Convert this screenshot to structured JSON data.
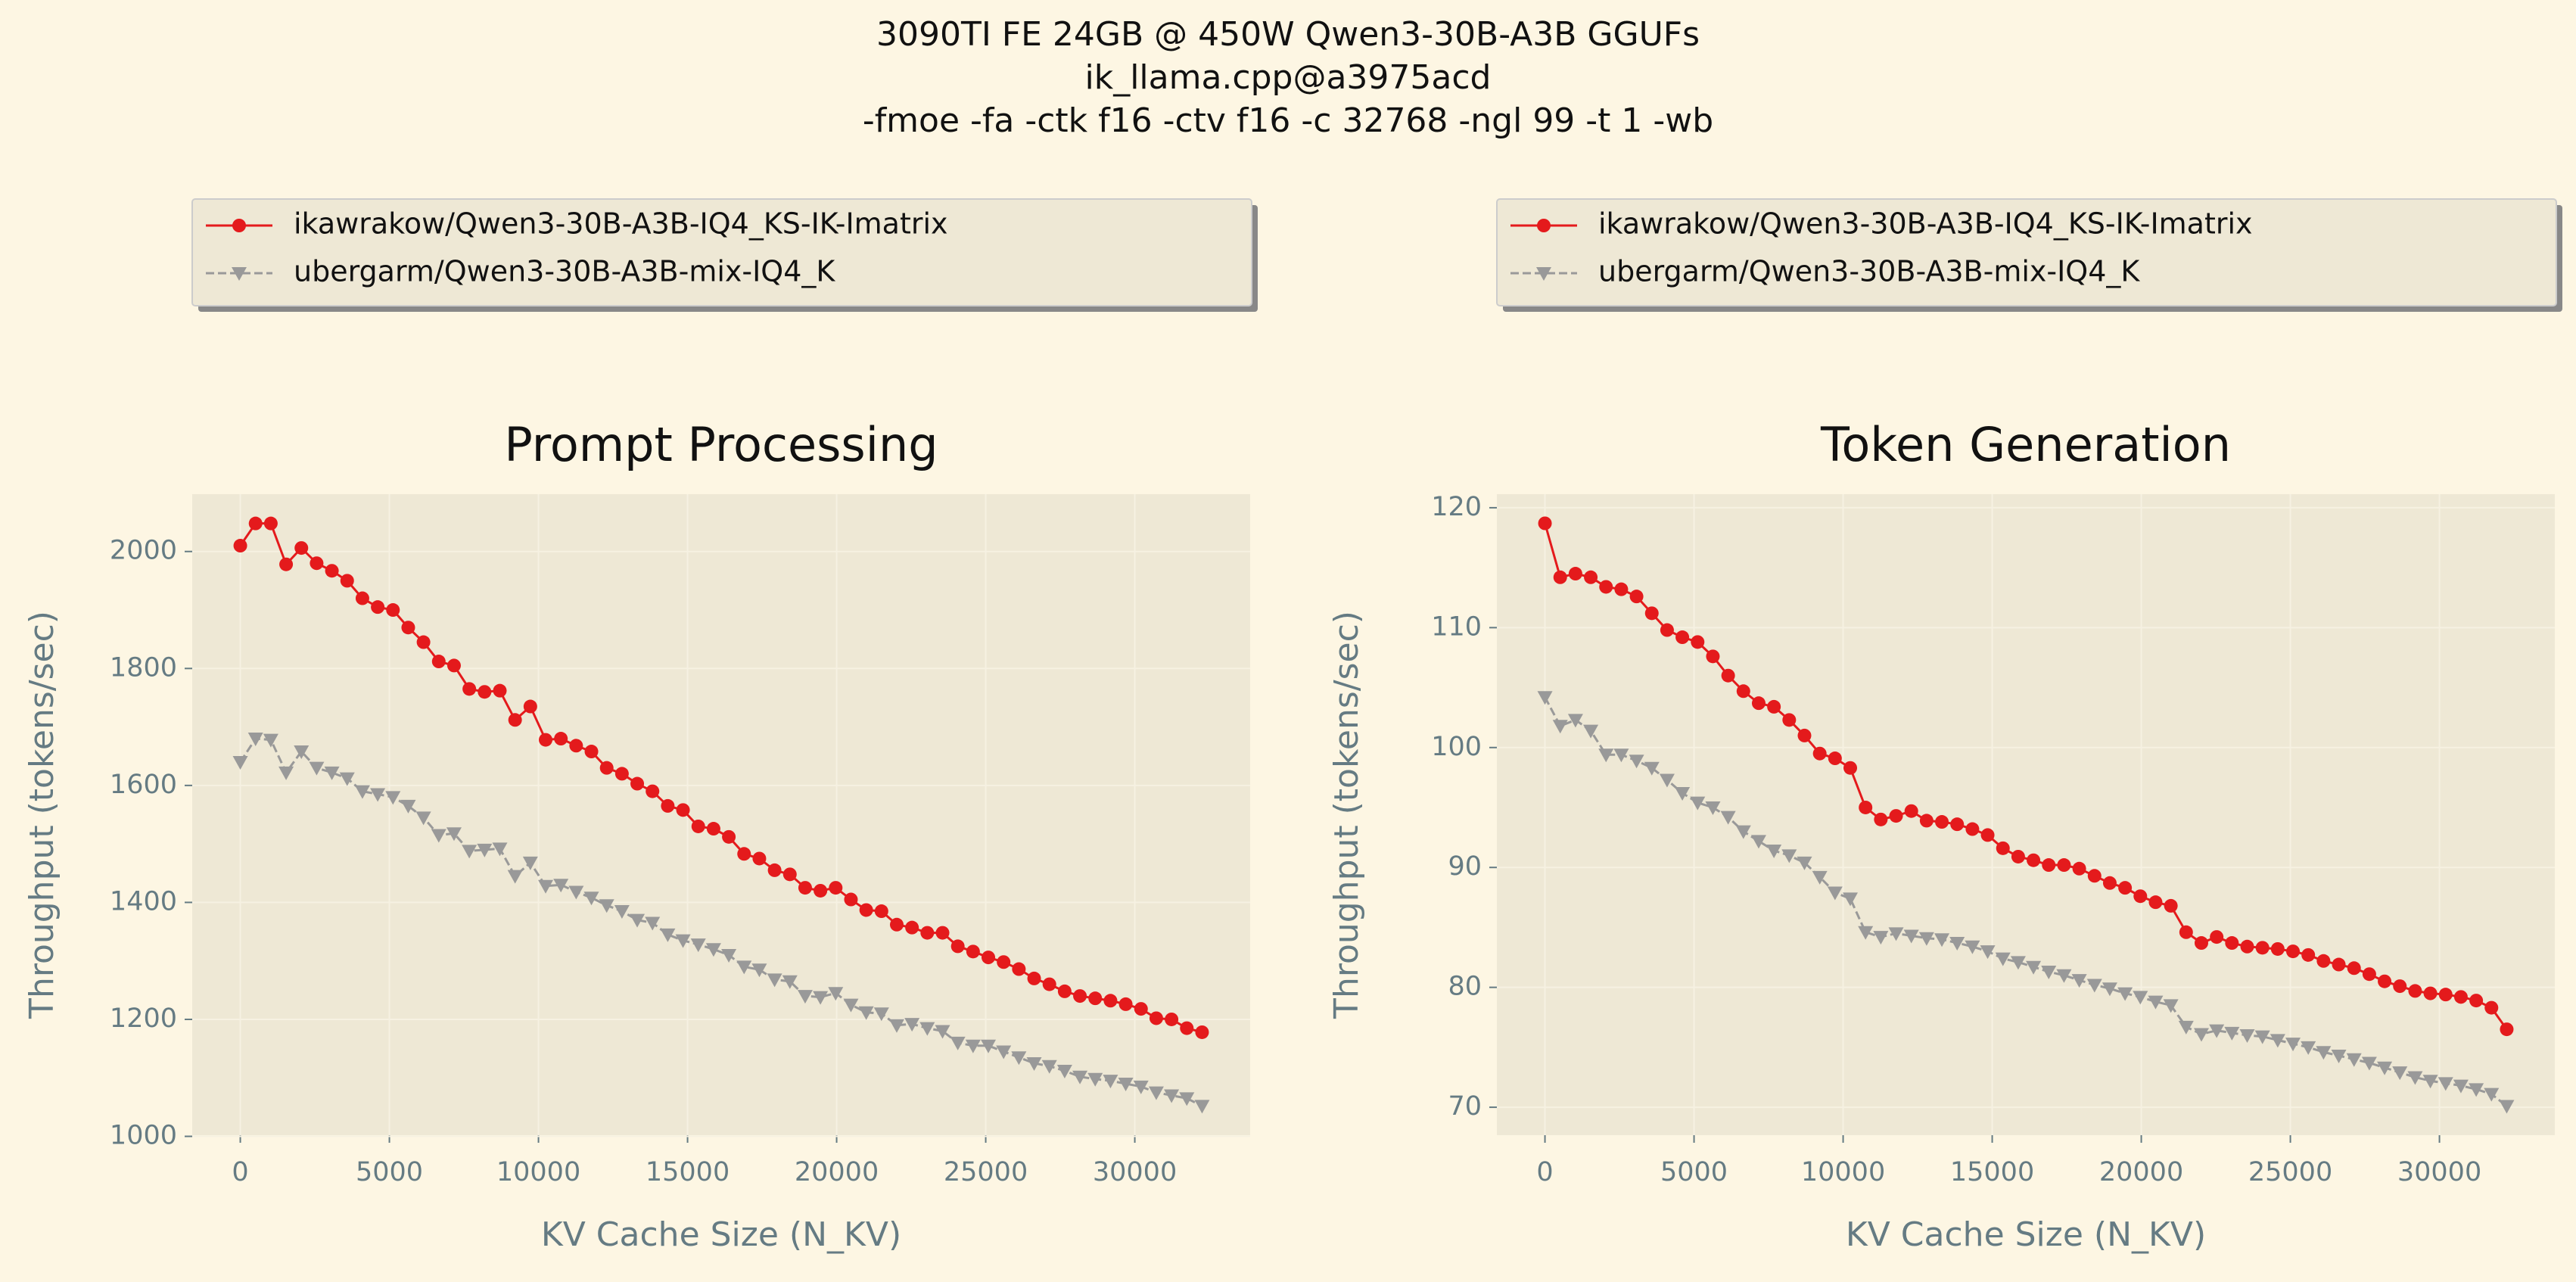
{
  "figure": {
    "title_lines": [
      "3090TI FE 24GB @ 450W Qwen3-30B-A3B GGUFs",
      "ik_llama.cpp@a3975acd",
      "-fmoe -fa -ctk f16 -ctv f16 -c 32768 -ngl 99 -t 1 -wb"
    ]
  },
  "chart_data": [
    {
      "type": "line",
      "title": "Prompt Processing",
      "xlabel": "KV Cache Size (N_KV)",
      "ylabel": "Throughput (tokens/sec)",
      "x": [
        0,
        512,
        1024,
        1536,
        2048,
        2560,
        3072,
        3584,
        4096,
        4608,
        5120,
        5632,
        6144,
        6656,
        7168,
        7680,
        8192,
        8704,
        9216,
        9728,
        10240,
        10752,
        11264,
        11776,
        12288,
        12800,
        13312,
        13824,
        14336,
        14848,
        15360,
        15872,
        16384,
        16896,
        17408,
        17920,
        18432,
        18944,
        19456,
        19968,
        20480,
        20992,
        21504,
        22016,
        22528,
        23040,
        23552,
        24064,
        24576,
        25088,
        25600,
        26112,
        26624,
        27136,
        27648,
        28160,
        28672,
        29184,
        29696,
        30208,
        30720,
        31232,
        31744,
        32256
      ],
      "series": [
        {
          "name": "ikawrakow/Qwen3-30B-A3B-IQ4_KS-IK-Imatrix",
          "color": "#e41a1c",
          "marker": "circle",
          "dashed": false,
          "values": [
            2010,
            2048,
            2048,
            1978,
            2006,
            1980,
            1967,
            1950,
            1920,
            1905,
            1900,
            1870,
            1845,
            1812,
            1805,
            1765,
            1760,
            1762,
            1712,
            1735,
            1678,
            1680,
            1668,
            1658,
            1630,
            1620,
            1603,
            1590,
            1565,
            1558,
            1530,
            1526,
            1512,
            1483,
            1475,
            1455,
            1448,
            1425,
            1420,
            1425,
            1405,
            1387,
            1385,
            1362,
            1357,
            1348,
            1348,
            1325,
            1316,
            1306,
            1298,
            1286,
            1270,
            1260,
            1248,
            1240,
            1236,
            1232,
            1226,
            1218,
            1202,
            1200,
            1185,
            1178
          ]
        },
        {
          "name": "ubergarm/Qwen3-30B-A3B-mix-IQ4_K",
          "color": "#999999",
          "marker": "triangle-down",
          "dashed": true,
          "values": [
            1640,
            1680,
            1678,
            1622,
            1658,
            1630,
            1622,
            1612,
            1590,
            1585,
            1580,
            1565,
            1545,
            1515,
            1518,
            1488,
            1490,
            1492,
            1445,
            1468,
            1428,
            1430,
            1418,
            1408,
            1395,
            1385,
            1370,
            1365,
            1345,
            1335,
            1328,
            1320,
            1310,
            1290,
            1285,
            1268,
            1265,
            1240,
            1238,
            1245,
            1225,
            1212,
            1210,
            1190,
            1192,
            1185,
            1180,
            1160,
            1155,
            1155,
            1145,
            1135,
            1125,
            1120,
            1112,
            1102,
            1098,
            1095,
            1090,
            1085,
            1075,
            1070,
            1065,
            1052
          ]
        }
      ],
      "xlim": [
        -1613,
        33869
      ],
      "ylim": [
        1002,
        2098
      ],
      "xticks": [
        0,
        5000,
        10000,
        15000,
        20000,
        25000,
        30000
      ],
      "yticks": [
        1000,
        1200,
        1400,
        1600,
        1800,
        2000
      ],
      "grid": true,
      "legend": "above"
    },
    {
      "type": "line",
      "title": "Token Generation",
      "xlabel": "KV Cache Size (N_KV)",
      "ylabel": "Throughput (tokens/sec)",
      "x": [
        0,
        512,
        1024,
        1536,
        2048,
        2560,
        3072,
        3584,
        4096,
        4608,
        5120,
        5632,
        6144,
        6656,
        7168,
        7680,
        8192,
        8704,
        9216,
        9728,
        10240,
        10752,
        11264,
        11776,
        12288,
        12800,
        13312,
        13824,
        14336,
        14848,
        15360,
        15872,
        16384,
        16896,
        17408,
        17920,
        18432,
        18944,
        19456,
        19968,
        20480,
        20992,
        21504,
        22016,
        22528,
        23040,
        23552,
        24064,
        24576,
        25088,
        25600,
        26112,
        26624,
        27136,
        27648,
        28160,
        28672,
        29184,
        29696,
        30208,
        30720,
        31232,
        31744,
        32256
      ],
      "series": [
        {
          "name": "ikawrakow/Qwen3-30B-A3B-IQ4_KS-IK-Imatrix",
          "color": "#e41a1c",
          "marker": "circle",
          "dashed": false,
          "values": [
            118.7,
            114.2,
            114.5,
            114.2,
            113.4,
            113.2,
            112.6,
            111.2,
            109.8,
            109.2,
            108.8,
            107.6,
            106.0,
            104.7,
            103.7,
            103.4,
            102.3,
            101.0,
            99.5,
            99.1,
            98.3,
            95.0,
            94.0,
            94.3,
            94.7,
            93.9,
            93.8,
            93.6,
            93.2,
            92.7,
            91.6,
            90.9,
            90.6,
            90.2,
            90.2,
            89.9,
            89.3,
            88.7,
            88.3,
            87.6,
            87.1,
            86.8,
            84.6,
            83.7,
            84.2,
            83.7,
            83.4,
            83.3,
            83.2,
            83.0,
            82.7,
            82.2,
            81.9,
            81.6,
            81.1,
            80.5,
            80.1,
            79.7,
            79.5,
            79.4,
            79.2,
            78.9,
            78.3,
            76.5
          ]
        },
        {
          "name": "ubergarm/Qwen3-30B-A3B-mix-IQ4_K",
          "color": "#999999",
          "marker": "triangle-down",
          "dashed": true,
          "values": [
            104.2,
            101.8,
            102.3,
            101.4,
            99.4,
            99.4,
            98.9,
            98.3,
            97.3,
            96.2,
            95.4,
            95.0,
            94.2,
            93.0,
            92.2,
            91.4,
            91.0,
            90.4,
            89.2,
            87.9,
            87.4,
            84.6,
            84.2,
            84.5,
            84.3,
            84.1,
            84.0,
            83.7,
            83.4,
            83.0,
            82.4,
            82.1,
            81.7,
            81.3,
            81.0,
            80.6,
            80.2,
            79.9,
            79.5,
            79.2,
            78.8,
            78.5,
            76.7,
            76.1,
            76.4,
            76.2,
            76.0,
            75.9,
            75.6,
            75.3,
            75.0,
            74.6,
            74.3,
            74.0,
            73.7,
            73.3,
            72.9,
            72.5,
            72.2,
            72.0,
            71.8,
            71.5,
            71.1,
            70.1
          ]
        }
      ],
      "xlim": [
        -1613,
        33869
      ],
      "ylim": [
        67.67,
        121.13
      ],
      "xticks": [
        0,
        5000,
        10000,
        15000,
        20000,
        25000,
        30000
      ],
      "yticks": [
        70,
        80,
        90,
        100,
        110,
        120
      ],
      "grid": true,
      "legend": "above"
    }
  ]
}
